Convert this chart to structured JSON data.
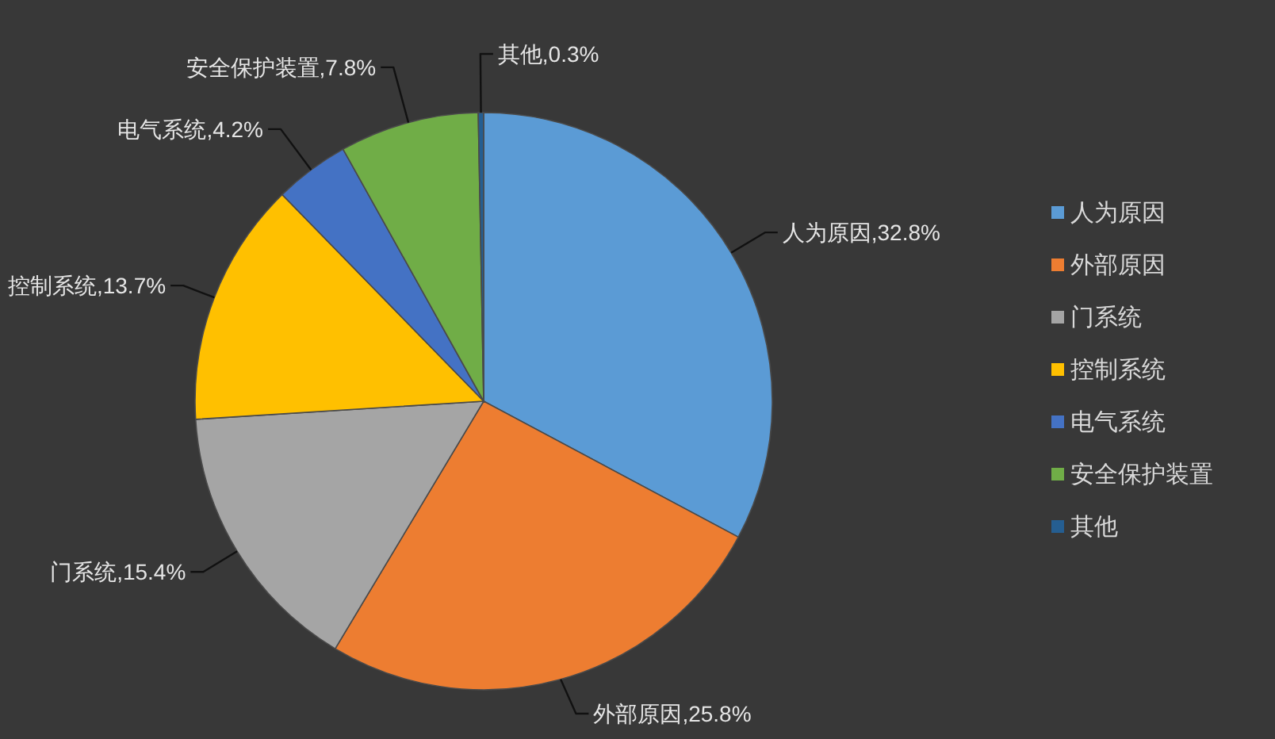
{
  "chart_data": {
    "type": "pie",
    "categories": [
      "人为原因",
      "外部原因",
      "门系统",
      "控制系统",
      "电气系统",
      "安全保护装置",
      "其他"
    ],
    "values": [
      32.8,
      25.8,
      15.4,
      13.7,
      4.2,
      7.8,
      0.3
    ],
    "colors": [
      "#5b9bd5",
      "#ed7d31",
      "#a5a5a5",
      "#ffc000",
      "#4472c4",
      "#70ad47",
      "#255e91"
    ],
    "value_labels": [
      "人为原因,32.8%",
      "外部原因,25.8%",
      "门系统,15.4%",
      "控制系统,13.7%",
      "电气系统,4.2%",
      "安全保护装置,7.8%",
      "其他,0.3%"
    ],
    "legend": "right"
  }
}
